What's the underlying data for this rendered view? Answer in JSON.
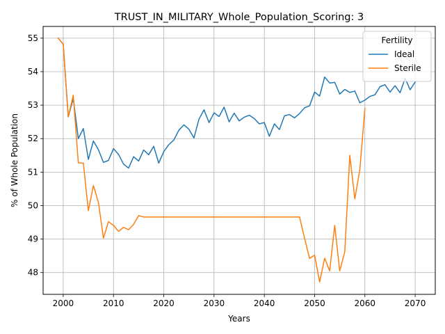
{
  "chart_data": {
    "type": "line",
    "title": "TRUST_IN_MILITARY_Whole_Population_Scoring: 3",
    "xlabel": "Years",
    "ylabel": "% of Whole Population",
    "xlim": [
      1996,
      2074
    ],
    "ylim": [
      47.35,
      55.35
    ],
    "xticks": [
      2000,
      2010,
      2020,
      2030,
      2040,
      2050,
      2060,
      2070
    ],
    "yticks": [
      48,
      49,
      50,
      51,
      52,
      53,
      54,
      55
    ],
    "grid": true,
    "legend": {
      "title": "Fertility",
      "placement": "upper-right"
    },
    "series": [
      {
        "name": "Ideal",
        "color": "#1f77b4",
        "x": [
          1999,
          2000,
          2001,
          2002,
          2003,
          2004,
          2005,
          2006,
          2007,
          2008,
          2009,
          2010,
          2011,
          2012,
          2013,
          2014,
          2015,
          2016,
          2017,
          2018,
          2019,
          2020,
          2021,
          2022,
          2023,
          2024,
          2025,
          2026,
          2027,
          2028,
          2029,
          2030,
          2031,
          2032,
          2033,
          2034,
          2035,
          2036,
          2037,
          2038,
          2039,
          2040,
          2041,
          2042,
          2043,
          2044,
          2045,
          2046,
          2047,
          2048,
          2049,
          2050,
          2051,
          2052,
          2053,
          2054,
          2055,
          2056,
          2057,
          2058,
          2059,
          2060,
          2061,
          2062,
          2063,
          2064,
          2065,
          2066,
          2067,
          2068,
          2069,
          2070
        ],
        "y": [
          55.0,
          54.82,
          52.65,
          53.2,
          52.0,
          52.3,
          51.38,
          51.93,
          51.67,
          51.29,
          51.35,
          51.7,
          51.53,
          51.24,
          51.12,
          51.46,
          51.33,
          51.66,
          51.52,
          51.77,
          51.27,
          51.61,
          51.82,
          51.96,
          52.25,
          52.41,
          52.28,
          52.02,
          52.58,
          52.86,
          52.48,
          52.77,
          52.66,
          52.94,
          52.5,
          52.76,
          52.53,
          52.64,
          52.7,
          52.6,
          52.44,
          52.48,
          52.07,
          52.44,
          52.27,
          52.68,
          52.72,
          52.62,
          52.75,
          52.92,
          52.98,
          53.39,
          53.27,
          53.84,
          53.66,
          53.68,
          53.33,
          53.47,
          53.38,
          53.42,
          53.07,
          53.15,
          53.26,
          53.31,
          53.55,
          53.61,
          53.39,
          53.58,
          53.37,
          53.8,
          53.46,
          53.69
        ]
      },
      {
        "name": "Sterile",
        "color": "#ff7f0e",
        "x": [
          1999,
          2000,
          2001,
          2002,
          2003,
          2004,
          2005,
          2006,
          2007,
          2008,
          2009,
          2010,
          2011,
          2012,
          2013,
          2014,
          2015,
          2016,
          2017,
          2018,
          2019,
          2020,
          2021,
          2022,
          2023,
          2024,
          2025,
          2026,
          2027,
          2028,
          2029,
          2030,
          2031,
          2032,
          2033,
          2034,
          2035,
          2036,
          2037,
          2038,
          2039,
          2040,
          2041,
          2042,
          2043,
          2044,
          2045,
          2046,
          2047,
          2048,
          2049,
          2050,
          2051,
          2052,
          2053,
          2054,
          2055,
          2056,
          2057,
          2058,
          2059,
          2060
        ],
        "y": [
          55.0,
          54.82,
          52.65,
          53.3,
          51.28,
          51.27,
          49.85,
          50.6,
          50.1,
          49.03,
          49.52,
          49.41,
          49.23,
          49.35,
          49.28,
          49.44,
          49.7,
          49.66,
          49.66,
          49.66,
          49.66,
          49.66,
          49.66,
          49.66,
          49.66,
          49.66,
          49.66,
          49.66,
          49.66,
          49.66,
          49.66,
          49.66,
          49.66,
          49.66,
          49.66,
          49.66,
          49.66,
          49.66,
          49.66,
          49.66,
          49.66,
          49.66,
          49.66,
          49.66,
          49.66,
          49.66,
          49.66,
          49.66,
          49.66,
          49.03,
          48.42,
          48.52,
          47.72,
          48.43,
          48.05,
          49.41,
          48.05,
          48.62,
          51.5,
          50.2,
          51.08,
          52.9
        ]
      }
    ]
  }
}
